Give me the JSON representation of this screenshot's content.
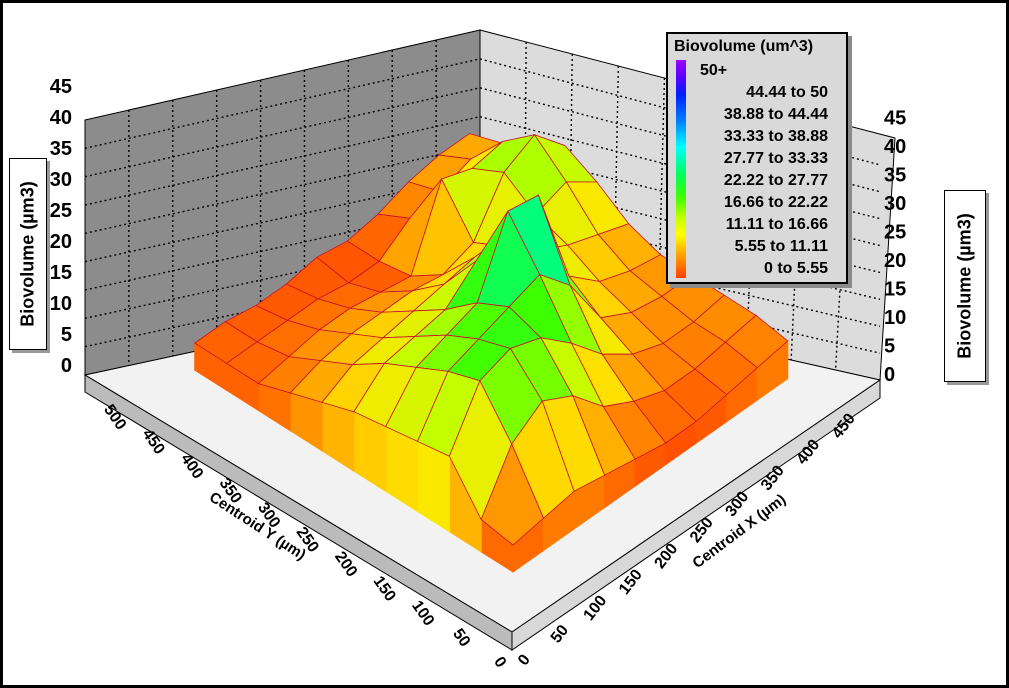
{
  "chart_data": {
    "type": "surface3d",
    "title": "",
    "xlabel": "Centroid X (µm)",
    "ylabel": "Centroid Y (µm)",
    "zlabel": "Biovolume (µm3)",
    "zlim": [
      0,
      45
    ],
    "x_ticks": [
      "0",
      "50",
      "100",
      "150",
      "200",
      "250",
      "300",
      "350",
      "400",
      "450"
    ],
    "y_ticks": [
      "0",
      "50",
      "100",
      "150",
      "200",
      "250",
      "300",
      "350",
      "400",
      "450",
      "500"
    ],
    "z_ticks": [
      "0",
      "5",
      "10",
      "15",
      "20",
      "25",
      "30",
      "35",
      "40",
      "45"
    ],
    "legend": {
      "title": "Biovolume (um^3)",
      "placement": "top-right",
      "entries": [
        "50+",
        "44.44 to 50",
        "38.88 to 44.44",
        "33.33 to 38.88",
        "27.77 to 33.33",
        "22.22 to 27.77",
        "16.66 to 22.22",
        "11.11 to 16.66",
        "5.55 to 11.11",
        "0 to 5.55"
      ],
      "colors": [
        "#8a00ff",
        "#3000ff",
        "#0040ff",
        "#0099ff",
        "#00e5ff",
        "#00ff66",
        "#33ff00",
        "#b8ff00",
        "#ffd000",
        "#ff3000"
      ]
    },
    "x_grid": [
      0,
      50,
      100,
      150,
      200,
      250,
      300,
      350,
      400,
      450
    ],
    "y_grid": [
      0,
      50,
      100,
      150,
      200,
      250,
      300,
      350,
      400,
      450,
      500
    ],
    "z_values": [
      [
        3,
        4,
        12,
        11,
        10,
        9,
        7,
        5,
        3,
        3,
        3
      ],
      [
        4,
        14,
        22,
        20,
        17,
        14,
        10,
        7,
        4,
        3,
        3
      ],
      [
        5,
        18,
        24,
        22,
        19,
        15,
        11,
        8,
        5,
        3,
        2
      ],
      [
        4,
        15,
        22,
        24,
        21,
        16,
        12,
        8,
        5,
        3,
        2
      ],
      [
        3,
        9,
        17,
        26,
        34,
        21,
        13,
        8,
        4,
        2,
        3
      ],
      [
        2,
        6,
        11,
        20,
        33,
        22,
        14,
        7,
        3,
        2,
        2
      ],
      [
        2,
        4,
        7,
        10,
        14,
        15,
        12,
        9,
        17,
        6,
        3
      ],
      [
        3,
        4,
        5,
        7,
        9,
        12,
        14,
        18,
        15,
        7,
        5
      ],
      [
        4,
        5,
        5,
        6,
        7,
        10,
        16,
        21,
        16,
        9,
        6
      ],
      [
        5,
        6,
        6,
        6,
        6,
        8,
        12,
        15,
        12,
        8,
        6
      ]
    ]
  }
}
